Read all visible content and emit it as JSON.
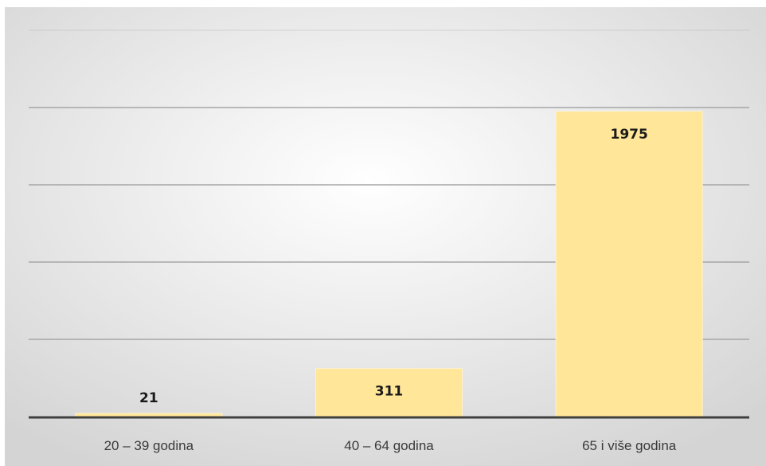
{
  "chart_data": {
    "type": "bar",
    "categories": [
      "20 – 39 godina",
      "40 – 64 godina",
      "65 i više godina"
    ],
    "values": [
      21,
      311,
      1975
    ],
    "title": "",
    "xlabel": "",
    "ylabel": "",
    "ylim": [
      0,
      2500
    ],
    "grid": true,
    "legend": "none",
    "colors": {
      "bar_fill": "#FFE699",
      "bar_stroke": "#FFF2C9",
      "gridline": "#A6A6A6",
      "axis": "#404040",
      "background_center": "#FFFFFF",
      "background_edge": "#D4D4D4"
    }
  }
}
